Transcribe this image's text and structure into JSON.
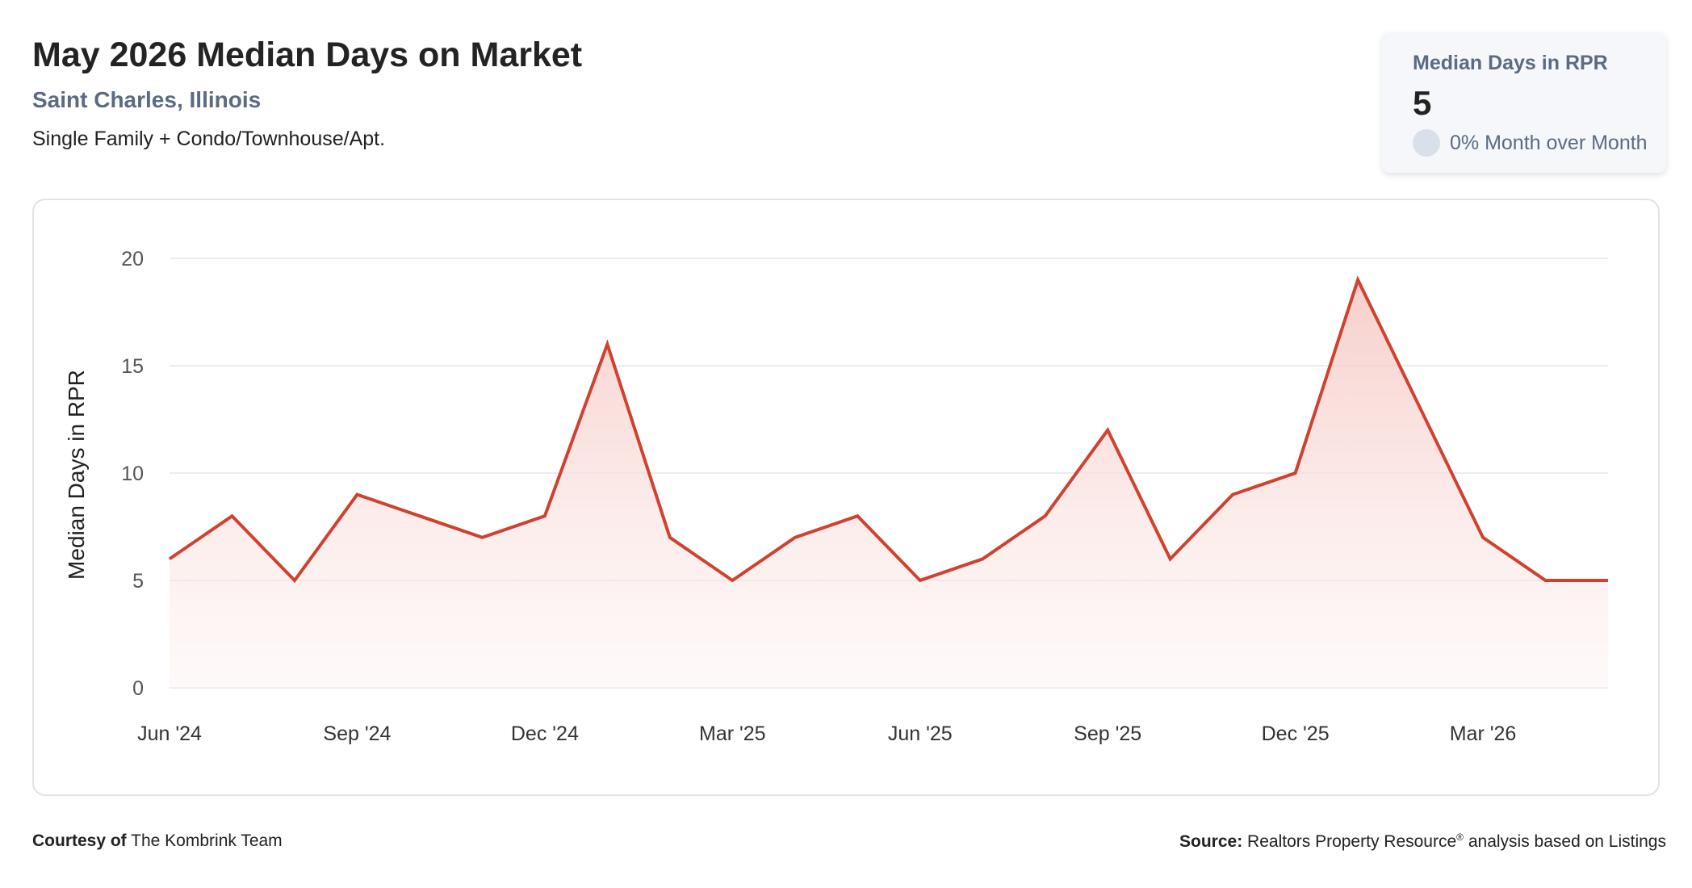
{
  "header": {
    "title": "May 2026 Median Days on Market",
    "location": "Saint Charles, Illinois",
    "property_types": "Single Family + Condo/Townhouse/Apt."
  },
  "stat_card": {
    "label": "Median Days in RPR",
    "value": "5",
    "change": "0% Month over Month"
  },
  "footer": {
    "courtesy_label": "Courtesy of",
    "courtesy_name": "The Kombrink Team",
    "source_label": "Source:",
    "source_text_1": "Realtors Property Resource",
    "source_reg": "®",
    "source_text_2": " analysis based on Listings"
  },
  "colors": {
    "line": "#d0412f",
    "fill_top": "#f5c6c1",
    "grid": "#e3e6ea",
    "axis_text": "#555555"
  },
  "chart_data": {
    "type": "area",
    "ylabel": "Median Days in RPR",
    "xlabel": "",
    "ylim": [
      0,
      20
    ],
    "yticks": [
      0,
      5,
      10,
      15,
      20
    ],
    "grid": true,
    "x": [
      "Jun '24",
      "Jul '24",
      "Aug '24",
      "Sep '24",
      "Oct '24",
      "Nov '24",
      "Dec '24",
      "Jan '25",
      "Feb '25",
      "Mar '25",
      "Apr '25",
      "May '25",
      "Jun '25",
      "Jul '25",
      "Aug '25",
      "Sep '25",
      "Oct '25",
      "Nov '25",
      "Dec '25",
      "Jan '26",
      "Feb '26",
      "Mar '26",
      "Apr '26",
      "May '26"
    ],
    "xtick_labels": [
      "Jun '24",
      "Sep '24",
      "Dec '24",
      "Mar '25",
      "Jun '25",
      "Sep '25",
      "Dec '25",
      "Mar '26"
    ],
    "series": [
      {
        "values": [
          6,
          8,
          5,
          9,
          8,
          7,
          8,
          16,
          7,
          5,
          7,
          8,
          5,
          6,
          8,
          12,
          6,
          9,
          10,
          19,
          13,
          7,
          5,
          5
        ]
      }
    ]
  }
}
